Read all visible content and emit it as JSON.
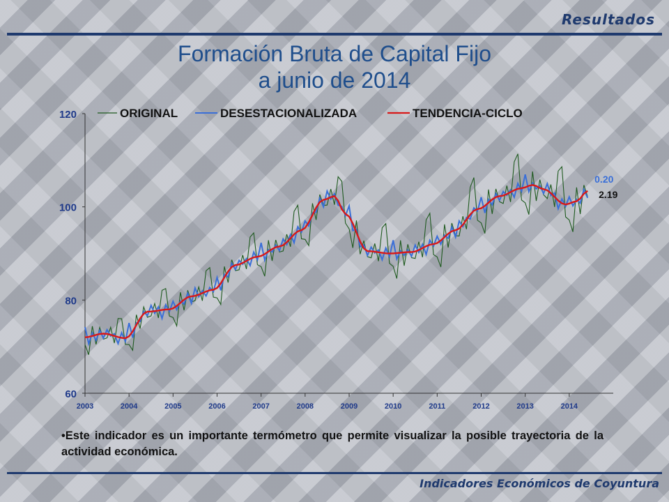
{
  "header": {
    "section": "Resultados"
  },
  "title": {
    "line1": "Formación Bruta de Capital Fijo",
    "line2": "a junio de 2014"
  },
  "legend": {
    "original": "ORIGINAL",
    "desestacionalizada": "DESESTACIONALIZADA",
    "tendencia": "TENDENCIA-CICLO"
  },
  "bullet": "Este indicador es un importante termómetro que permite visualizar la posible trayectoria de la actividad económica.",
  "footer": "Indicadores Económicos de Coyuntura",
  "colors": {
    "original": "#1f5a1f",
    "desestacionalizada": "#3a6fd8",
    "tendencia": "#d81818",
    "axis_label": "#1f3a8a"
  },
  "chart_data": {
    "type": "line",
    "x_start": "2003-01",
    "x_end": "2014-06",
    "frequency": "monthly",
    "x_ticks": [
      "2003",
      "2004",
      "2005",
      "2006",
      "2007",
      "2008",
      "2009",
      "2010",
      "2011",
      "2012",
      "2013",
      "2014"
    ],
    "ylim": [
      60,
      120
    ],
    "y_ticks": [
      60,
      80,
      100,
      120
    ],
    "legend_position": "top",
    "annotations": [
      {
        "text": "0.20",
        "series": "DESESTACIONALIZADA",
        "color": "#3a6fd8"
      },
      {
        "text": "2.19",
        "series": "ORIGINAL",
        "color": "#111111"
      }
    ],
    "series": [
      {
        "name": "TENDENCIA-CICLO",
        "anchors": [
          [
            "2003-01",
            72.0
          ],
          [
            "2003-06",
            72.8
          ],
          [
            "2003-12",
            71.8
          ],
          [
            "2004-06",
            77.5
          ],
          [
            "2004-12",
            78.0
          ],
          [
            "2005-06",
            80.8
          ],
          [
            "2005-12",
            82.2
          ],
          [
            "2006-06",
            87.5
          ],
          [
            "2006-12",
            89.3
          ],
          [
            "2007-06",
            91.5
          ],
          [
            "2007-12",
            95.0
          ],
          [
            "2008-06",
            101.5
          ],
          [
            "2008-09",
            102.3
          ],
          [
            "2008-12",
            98.5
          ],
          [
            "2009-06",
            90.5
          ],
          [
            "2009-12",
            90.0
          ],
          [
            "2010-06",
            90.3
          ],
          [
            "2010-12",
            92.0
          ],
          [
            "2011-06",
            95.0
          ],
          [
            "2011-12",
            99.5
          ],
          [
            "2012-06",
            102.3
          ],
          [
            "2012-12",
            104.0
          ],
          [
            "2013-03",
            104.7
          ],
          [
            "2013-06",
            103.8
          ],
          [
            "2013-12",
            100.5
          ],
          [
            "2014-03",
            101.2
          ],
          [
            "2014-06",
            103.4
          ]
        ]
      },
      {
        "name": "DESESTACIONALIZADA",
        "noise": [
          2.2,
          -1.2,
          0.5,
          -0.9,
          0.7,
          -1.1,
          1.3,
          -0.4,
          0.6,
          -1.4,
          0.9,
          -0.5
        ]
      },
      {
        "name": "ORIGINAL",
        "seasonal": [
          -2.2,
          -3.0,
          1.0,
          -1.5,
          0.5,
          0.0,
          -1.2,
          0.3,
          -0.8,
          3.0,
          4.8,
          -1.7
        ],
        "noise": [
          0.6,
          -0.8,
          1.1,
          -0.5,
          0.9,
          -1.2,
          0.4,
          1.3,
          -0.7,
          0.8,
          -1.0,
          0.5
        ]
      }
    ]
  }
}
